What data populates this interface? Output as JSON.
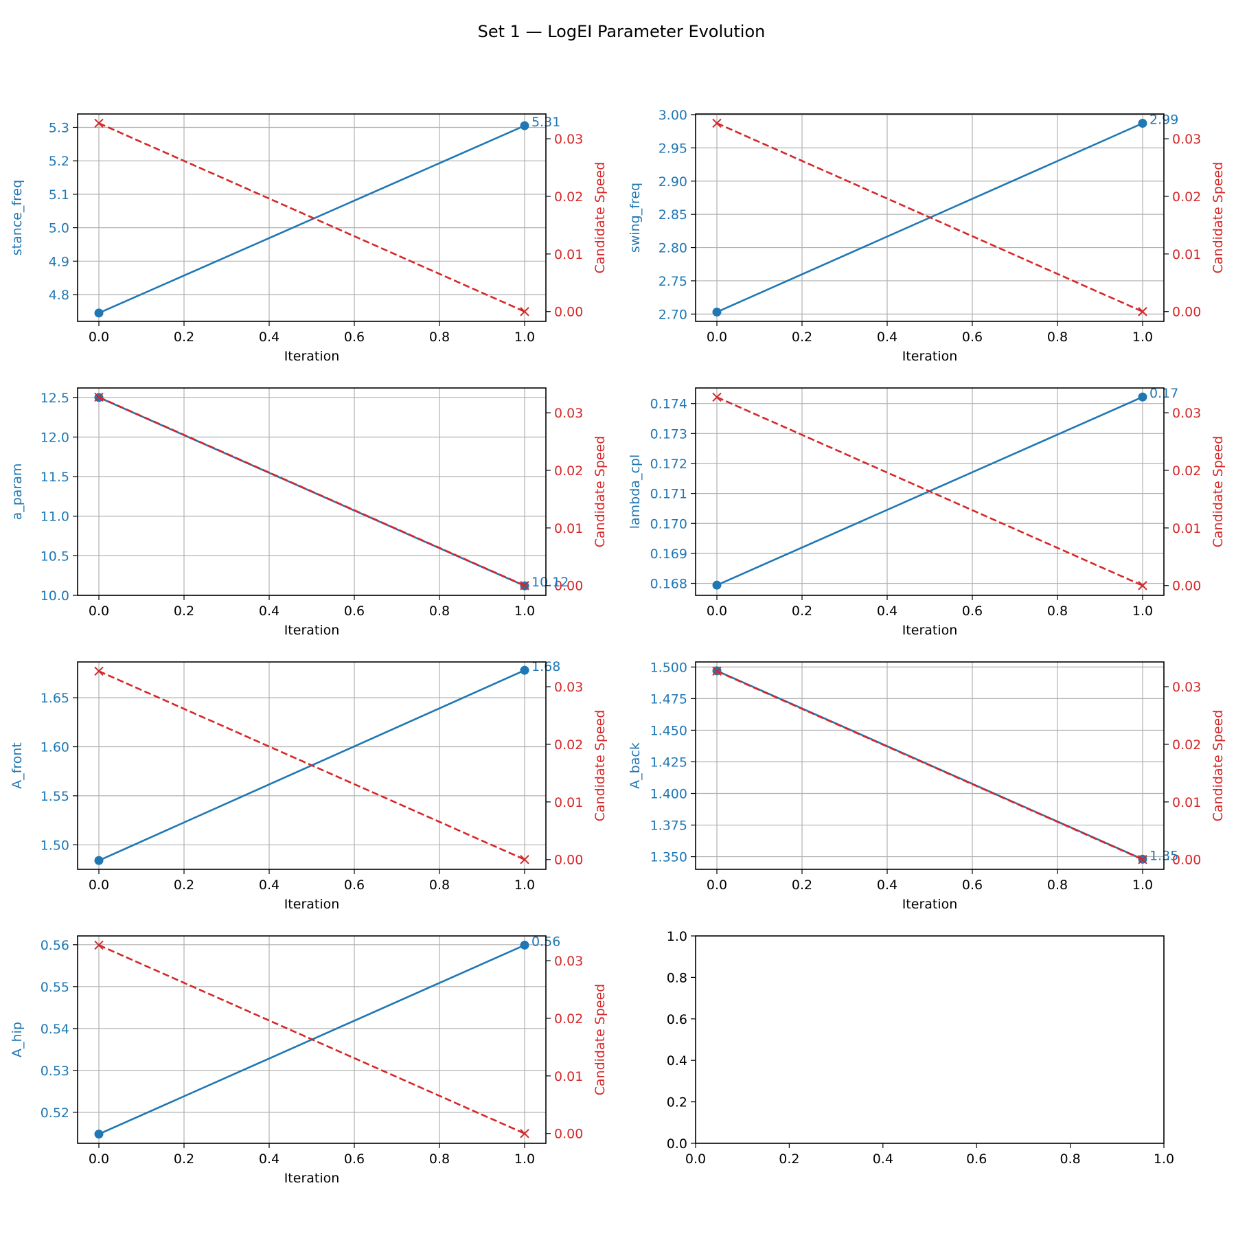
{
  "figure": {
    "title": "Set 1 — LogEI Parameter Evolution"
  },
  "colors": {
    "param": "#1f77b4",
    "speed": "#d62728",
    "grid": "#b0b0b0",
    "axis": "#000000"
  },
  "chart_data": [
    {
      "type": "line",
      "xlabel": "Iteration",
      "ylabel": "stance_freq",
      "y2label": "Candidate Speed",
      "xlim": [
        -0.05,
        1.05
      ],
      "xticks": [
        "0.0",
        "0.2",
        "0.4",
        "0.6",
        "0.8",
        "1.0"
      ],
      "ylim": [
        4.72,
        5.34
      ],
      "yticks": [
        "4.8",
        "4.9",
        "5.0",
        "5.1",
        "5.2",
        "5.3"
      ],
      "y2lim": [
        -0.0017,
        0.0343
      ],
      "y2ticks": [
        "0.00",
        "0.01",
        "0.02",
        "0.03"
      ],
      "grid": true,
      "series": [
        {
          "x": [
            0,
            1
          ],
          "y": [
            4.745,
            5.305
          ],
          "style": "solid-circle",
          "axis": "left"
        },
        {
          "x": [
            0,
            1
          ],
          "y": [
            0.0327,
            0.0
          ],
          "style": "dashed-x",
          "axis": "right"
        }
      ],
      "annotation": "5.31"
    },
    {
      "type": "line",
      "xlabel": "Iteration",
      "ylabel": "swing_freq",
      "y2label": "Candidate Speed",
      "xlim": [
        -0.05,
        1.05
      ],
      "xticks": [
        "0.0",
        "0.2",
        "0.4",
        "0.6",
        "0.8",
        "1.0"
      ],
      "ylim": [
        2.689,
        3.001
      ],
      "yticks": [
        "2.70",
        "2.75",
        "2.80",
        "2.85",
        "2.90",
        "2.95",
        "3.00"
      ],
      "y2lim": [
        -0.0017,
        0.0343
      ],
      "y2ticks": [
        "0.00",
        "0.01",
        "0.02",
        "0.03"
      ],
      "grid": true,
      "series": [
        {
          "x": [
            0,
            1
          ],
          "y": [
            2.703,
            2.987
          ],
          "style": "solid-circle",
          "axis": "left"
        },
        {
          "x": [
            0,
            1
          ],
          "y": [
            0.0327,
            0.0
          ],
          "style": "dashed-x",
          "axis": "right"
        }
      ],
      "annotation": "2.99"
    },
    {
      "type": "line",
      "xlabel": "Iteration",
      "ylabel": "a_param",
      "y2label": "Candidate Speed",
      "xlim": [
        -0.05,
        1.05
      ],
      "xticks": [
        "0.0",
        "0.2",
        "0.4",
        "0.6",
        "0.8",
        "1.0"
      ],
      "ylim": [
        10.0,
        12.62
      ],
      "yticks": [
        "10.0",
        "10.5",
        "11.0",
        "11.5",
        "12.0",
        "12.5"
      ],
      "y2lim": [
        -0.0017,
        0.0343
      ],
      "y2ticks": [
        "0.00",
        "0.01",
        "0.02",
        "0.03"
      ],
      "grid": true,
      "series": [
        {
          "x": [
            0,
            1
          ],
          "y": [
            12.5,
            10.12
          ],
          "style": "solid-circle",
          "axis": "left"
        },
        {
          "x": [
            0,
            1
          ],
          "y": [
            0.0327,
            0.0
          ],
          "style": "dashed-x",
          "axis": "right"
        }
      ],
      "annotation": "10.12"
    },
    {
      "type": "line",
      "xlabel": "Iteration",
      "ylabel": "lambda_cpl",
      "y2label": "Candidate Speed",
      "xlim": [
        -0.05,
        1.05
      ],
      "xticks": [
        "0.0",
        "0.2",
        "0.4",
        "0.6",
        "0.8",
        "1.0"
      ],
      "ylim": [
        0.1676,
        0.17452
      ],
      "yticks": [
        "0.168",
        "0.169",
        "0.170",
        "0.171",
        "0.172",
        "0.173",
        "0.174"
      ],
      "y2lim": [
        -0.0017,
        0.0343
      ],
      "y2ticks": [
        "0.00",
        "0.01",
        "0.02",
        "0.03"
      ],
      "grid": true,
      "series": [
        {
          "x": [
            0,
            1
          ],
          "y": [
            0.16794,
            0.17422
          ],
          "style": "solid-circle",
          "axis": "left"
        },
        {
          "x": [
            0,
            1
          ],
          "y": [
            0.0327,
            0.0
          ],
          "style": "dashed-x",
          "axis": "right"
        }
      ],
      "annotation": "0.17"
    },
    {
      "type": "line",
      "xlabel": "Iteration",
      "ylabel": "A_front",
      "y2label": "Candidate Speed",
      "xlim": [
        -0.05,
        1.05
      ],
      "xticks": [
        "0.0",
        "0.2",
        "0.4",
        "0.6",
        "0.8",
        "1.0"
      ],
      "ylim": [
        1.475,
        1.6865
      ],
      "yticks": [
        "1.50",
        "1.55",
        "1.60",
        "1.65"
      ],
      "y2lim": [
        -0.0017,
        0.0343
      ],
      "y2ticks": [
        "0.00",
        "0.01",
        "0.02",
        "0.03"
      ],
      "grid": true,
      "series": [
        {
          "x": [
            0,
            1
          ],
          "y": [
            1.484,
            1.678
          ],
          "style": "solid-circle",
          "axis": "left"
        },
        {
          "x": [
            0,
            1
          ],
          "y": [
            0.0327,
            0.0
          ],
          "style": "dashed-x",
          "axis": "right"
        }
      ],
      "annotation": "1.68"
    },
    {
      "type": "line",
      "xlabel": "Iteration",
      "ylabel": "A_back",
      "y2label": "Candidate Speed",
      "xlim": [
        -0.05,
        1.05
      ],
      "xticks": [
        "0.0",
        "0.2",
        "0.4",
        "0.6",
        "0.8",
        "1.0"
      ],
      "ylim": [
        1.34,
        1.504
      ],
      "yticks": [
        "1.350",
        "1.375",
        "1.400",
        "1.425",
        "1.450",
        "1.475",
        "1.500"
      ],
      "y2lim": [
        -0.0017,
        0.0343
      ],
      "y2ticks": [
        "0.00",
        "0.01",
        "0.02",
        "0.03"
      ],
      "grid": true,
      "series": [
        {
          "x": [
            0,
            1
          ],
          "y": [
            1.497,
            1.348
          ],
          "style": "solid-circle",
          "axis": "left"
        },
        {
          "x": [
            0,
            1
          ],
          "y": [
            0.0327,
            0.0
          ],
          "style": "dashed-x",
          "axis": "right"
        }
      ],
      "annotation": "1.35"
    },
    {
      "type": "line",
      "xlabel": "Iteration",
      "ylabel": "A_hip",
      "y2label": "Candidate Speed",
      "xlim": [
        -0.05,
        1.05
      ],
      "xticks": [
        "0.0",
        "0.2",
        "0.4",
        "0.6",
        "0.8",
        "1.0"
      ],
      "ylim": [
        0.5126,
        0.5621
      ],
      "yticks": [
        "0.52",
        "0.53",
        "0.54",
        "0.55",
        "0.56"
      ],
      "y2lim": [
        -0.0017,
        0.0343
      ],
      "y2ticks": [
        "0.00",
        "0.01",
        "0.02",
        "0.03"
      ],
      "grid": true,
      "series": [
        {
          "x": [
            0,
            1
          ],
          "y": [
            0.5148,
            0.5599
          ],
          "style": "solid-circle",
          "axis": "left"
        },
        {
          "x": [
            0,
            1
          ],
          "y": [
            0.0327,
            0.0
          ],
          "style": "dashed-x",
          "axis": "right"
        }
      ],
      "annotation": "0.56"
    },
    {
      "type": "line",
      "empty": true,
      "xlim": [
        0,
        1
      ],
      "xticks": [
        "0.0",
        "0.2",
        "0.4",
        "0.6",
        "0.8",
        "1.0"
      ],
      "ylim": [
        0,
        1
      ],
      "yticks": [
        "0.0",
        "0.2",
        "0.4",
        "0.6",
        "0.8",
        "1.0"
      ],
      "grid": false,
      "series": []
    }
  ]
}
